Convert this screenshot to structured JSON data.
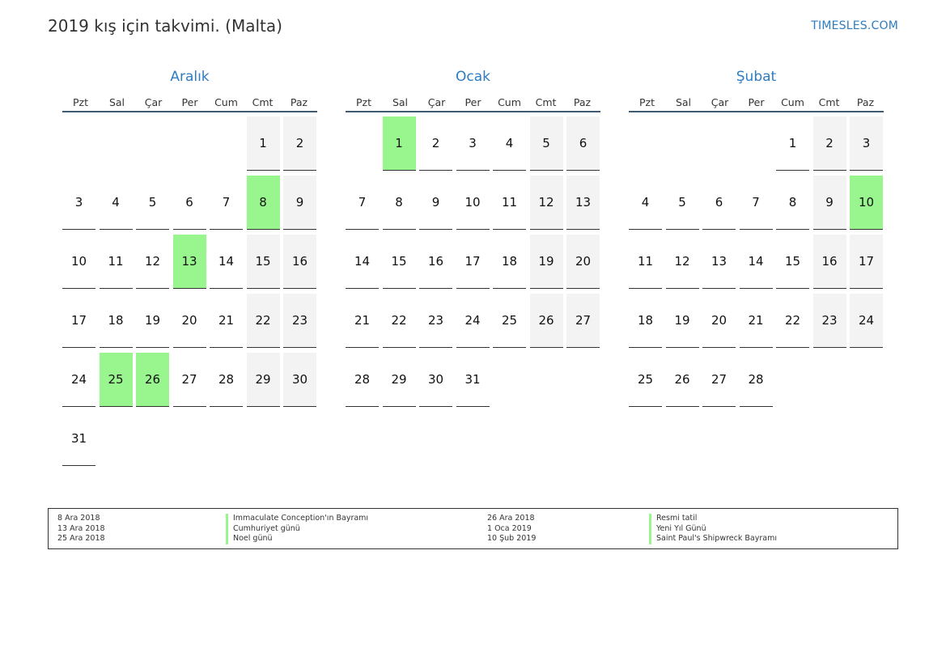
{
  "header": {
    "title": "2019 kış için takvimi. (Malta)",
    "brand": "TIMESLES.COM"
  },
  "weekdays": [
    "Pzt",
    "Sal",
    "Çar",
    "Per",
    "Cum",
    "Cmt",
    "Paz"
  ],
  "colors": {
    "accent": "#2e7cc1",
    "holiday": "#99f58d",
    "weekend": "#f3f3f3"
  },
  "months": [
    {
      "name": "Aralık",
      "offset": 5,
      "days": 31,
      "holidays": [
        8,
        13,
        25,
        26
      ]
    },
    {
      "name": "Ocak",
      "offset": 1,
      "days": 31,
      "holidays": [
        1
      ]
    },
    {
      "name": "Şubat",
      "offset": 4,
      "days": 28,
      "holidays": [
        10
      ]
    }
  ],
  "legend": {
    "left": [
      {
        "date": "8 Ara 2018",
        "name": "Immaculate Conception'ın Bayramı"
      },
      {
        "date": "13 Ara 2018",
        "name": "Cumhuriyet günü"
      },
      {
        "date": "25 Ara 2018",
        "name": "Noel günü"
      }
    ],
    "right": [
      {
        "date": "26 Ara 2018",
        "name": "Resmi tatil"
      },
      {
        "date": "1 Oca 2019",
        "name": "Yeni Yıl Günü"
      },
      {
        "date": "10 Şub 2019",
        "name": "Saint Paul's Shipwreck Bayramı"
      }
    ]
  }
}
